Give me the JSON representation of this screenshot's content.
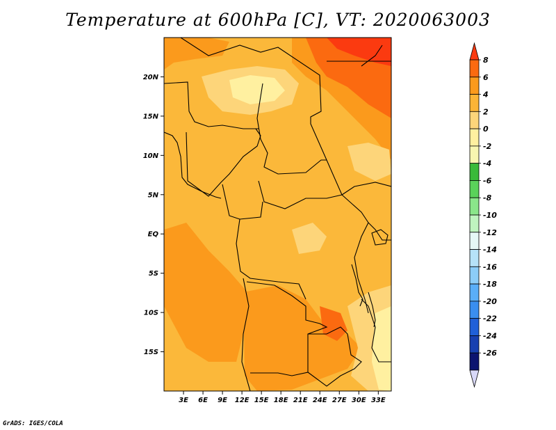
{
  "title": "Temperature at 600hPa [C], VT: 2020063003",
  "credit": "GrADS: IGES/COLA",
  "map": {
    "lon_labels": [
      "3E",
      "6E",
      "9E",
      "12E",
      "15E",
      "18E",
      "21E",
      "24E",
      "27E",
      "30E",
      "33E"
    ],
    "lat_labels": [
      "20N",
      "15N",
      "10N",
      "5N",
      "EQ",
      "5S",
      "10S",
      "15S"
    ],
    "lon_range": [
      0,
      35
    ],
    "lat_range": [
      -20,
      25
    ]
  },
  "colorbar": {
    "labels": [
      "8",
      "6",
      "4",
      "2",
      "0",
      "-2",
      "-4",
      "-6",
      "-8",
      "-10",
      "-12",
      "-14",
      "-16",
      "-18",
      "-20",
      "-22",
      "-24",
      "-26"
    ],
    "colors": [
      "#fb3a10",
      "#fb6a10",
      "#fb9a1c",
      "#fbb436",
      "#fdd57a",
      "#fff0a0",
      "#f8f6b0",
      "#3aba3a",
      "#5ad25a",
      "#8ae68a",
      "#bff4bf",
      "#e6f8f6",
      "#b6e2f8",
      "#8ccdf8",
      "#5aaef8",
      "#3a8ef0",
      "#2060d8",
      "#1840b0",
      "#0c1470",
      "#d8d8f8"
    ]
  },
  "colors": {
    "background": "#fbb83a",
    "warm": "#fb9a1c",
    "hot": "#fb6a10",
    "hottest": "#fb3a10",
    "cool": "#fdd57a",
    "coolest": "#fff0a0"
  }
}
